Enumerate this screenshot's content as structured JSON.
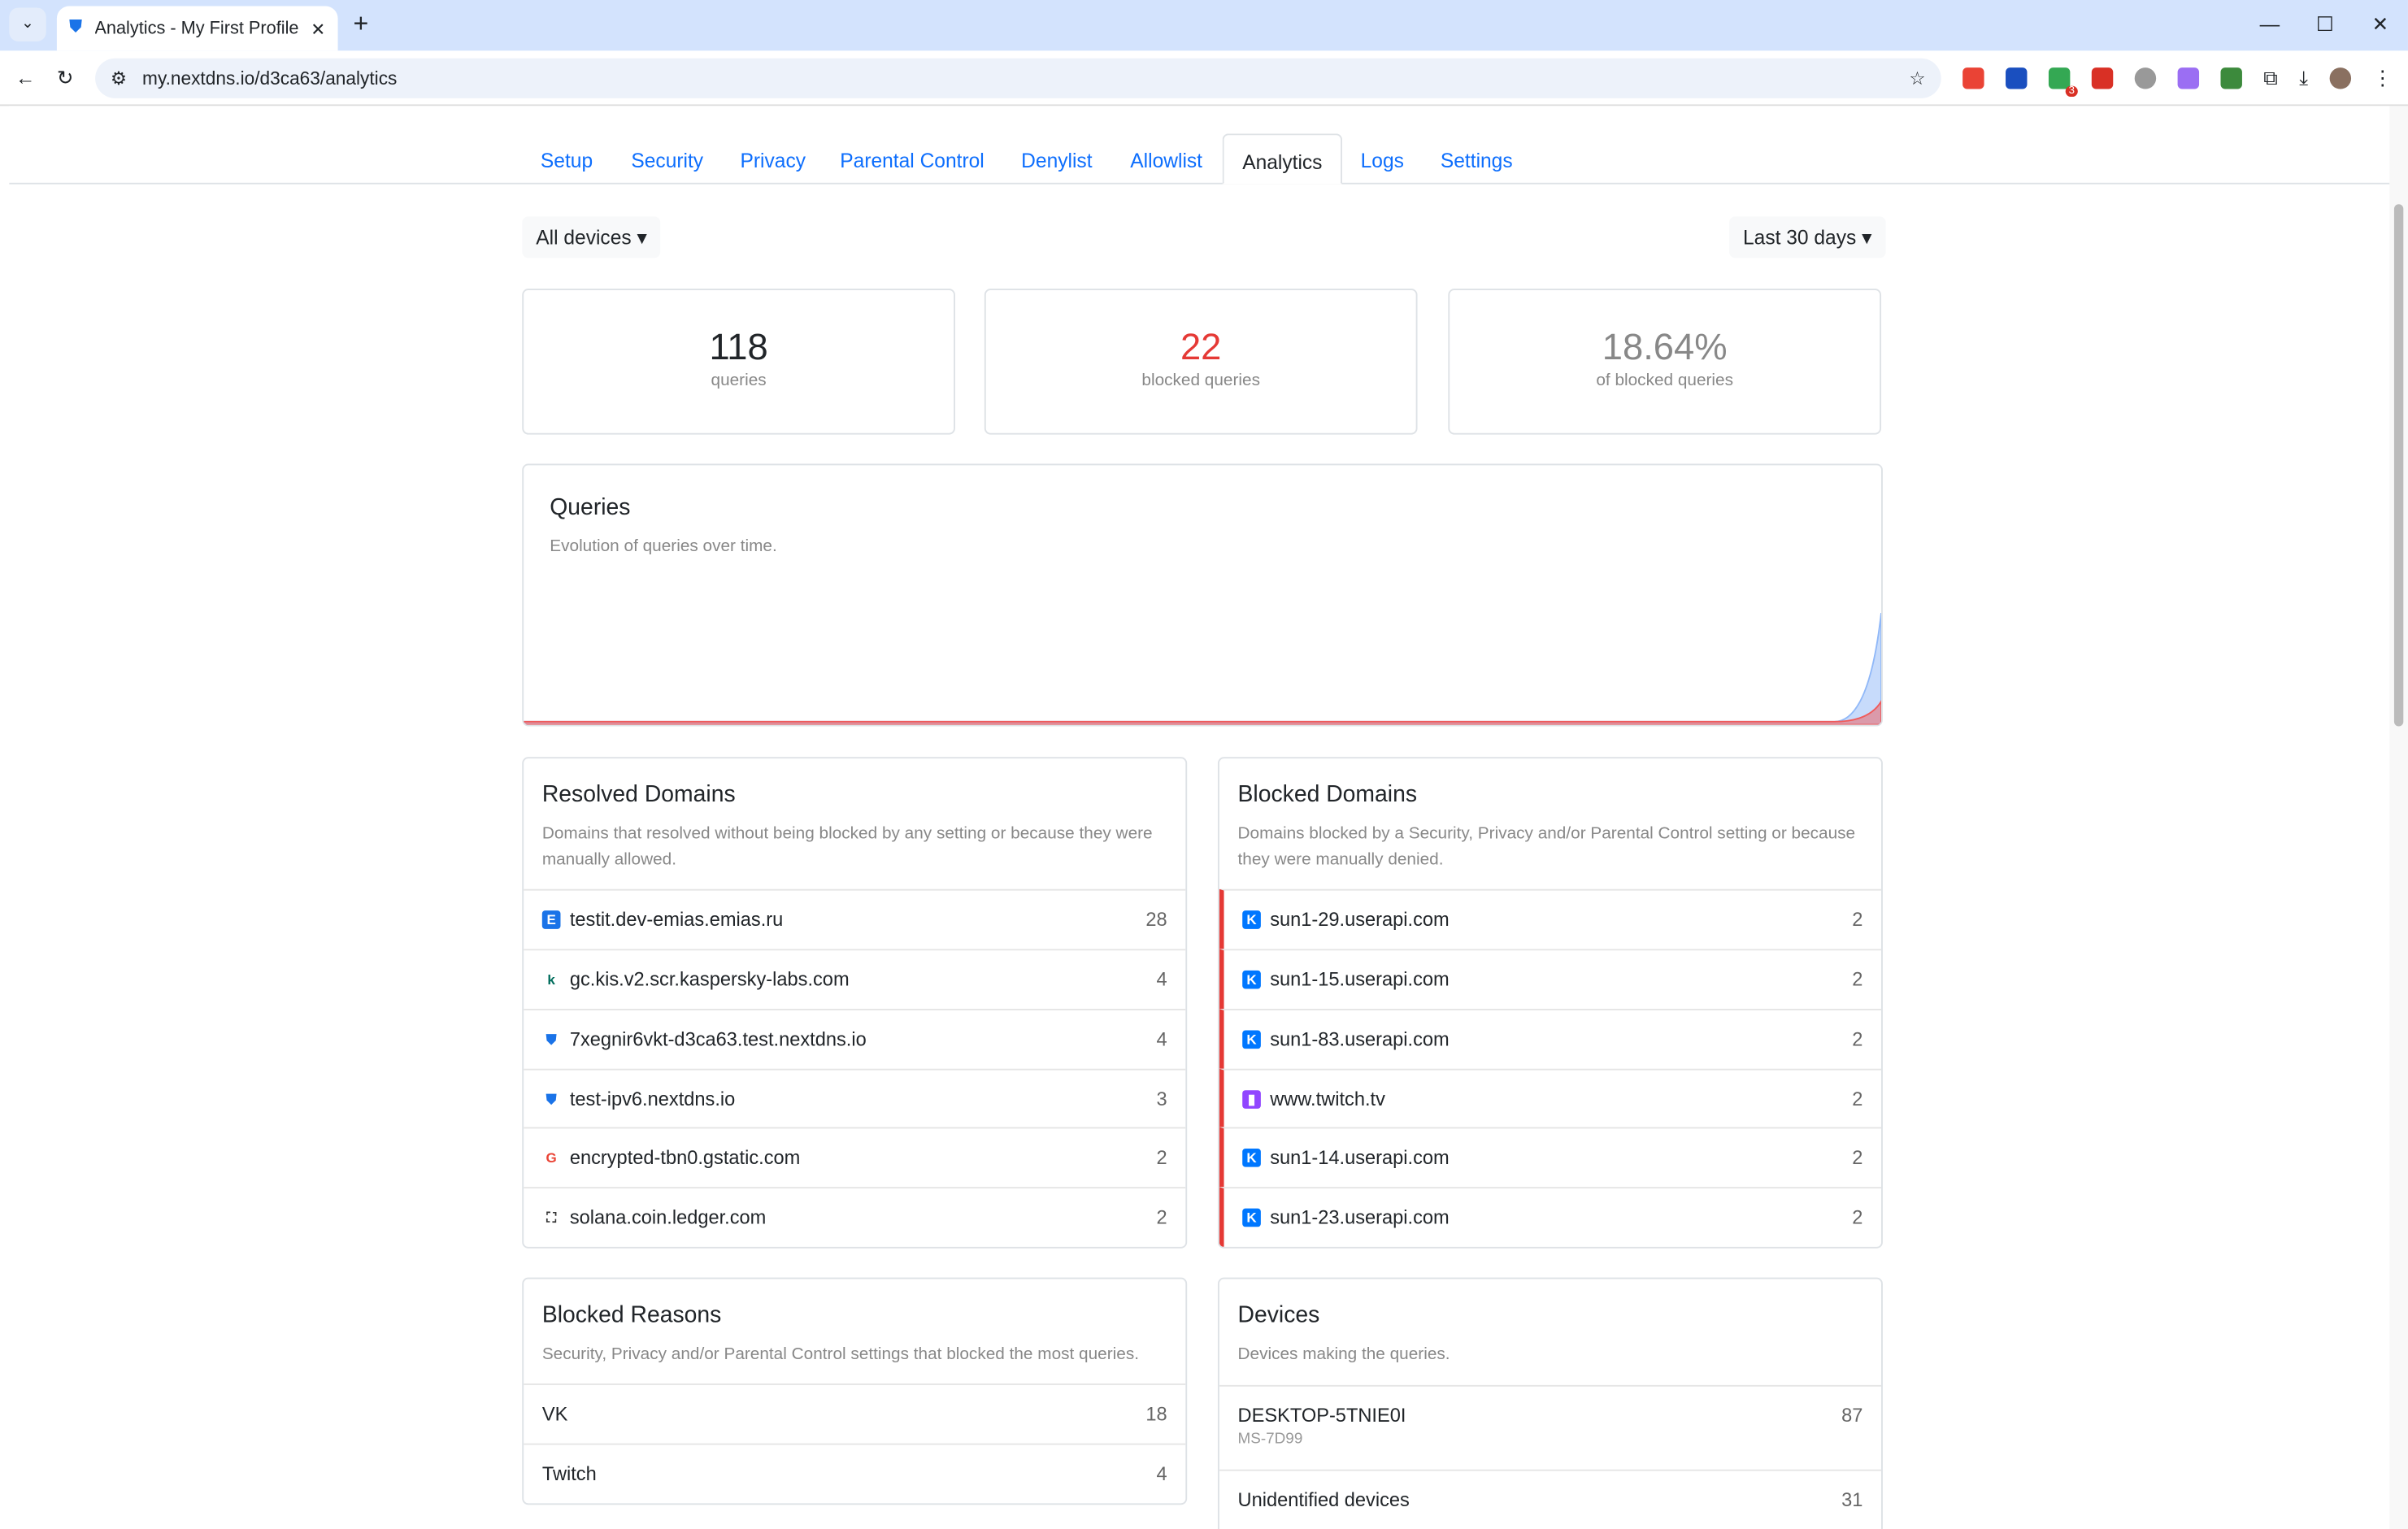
{
  "browser": {
    "tab_title": "Analytics - My First Profile - NextDNS",
    "url": "my.nextdns.io/d3ca63/analytics",
    "ext_badge": "3"
  },
  "nav": {
    "tabs": [
      "Setup",
      "Security",
      "Privacy",
      "Parental Control",
      "Denylist",
      "Allowlist",
      "Analytics",
      "Logs",
      "Settings"
    ],
    "active": "Analytics"
  },
  "filters": {
    "devices": "All devices",
    "range": "Last 30 days"
  },
  "stats": [
    {
      "value": "118",
      "label": "queries"
    },
    {
      "value": "22",
      "label": "blocked queries"
    },
    {
      "value": "18.64%",
      "label": "of blocked queries"
    }
  ],
  "colors": {
    "link": "#0d6efd",
    "blocked": "#e53935",
    "chart_queries": "#90b8f8",
    "chart_blocked": "#f05a5a"
  },
  "chart_data": {
    "type": "area",
    "title": "Queries",
    "subtitle": "Evolution of queries over time.",
    "grid": false,
    "series": [
      {
        "values": [
          0,
          0,
          0,
          0,
          0,
          0,
          0,
          0,
          0,
          0,
          0,
          0,
          0,
          0,
          0,
          0,
          0,
          0,
          0,
          0,
          0,
          0,
          0,
          0,
          0,
          0,
          0,
          0,
          0,
          118
        ]
      },
      {
        "values": [
          0,
          0,
          0,
          0,
          0,
          0,
          0,
          0,
          0,
          0,
          0,
          0,
          0,
          0,
          0,
          0,
          0,
          0,
          0,
          0,
          0,
          0,
          0,
          0,
          0,
          0,
          0,
          0,
          0,
          22
        ]
      }
    ]
  },
  "resolved": {
    "title": "Resolved Domains",
    "desc": "Domains that resolved without being blocked by any setting or because they were manually allowed.",
    "items": [
      {
        "domain": "testit.dev-emias.emias.ru",
        "count": "28",
        "icon": "emias-icon"
      },
      {
        "domain": "gc.kis.v2.scr.kaspersky-labs.com",
        "count": "4",
        "icon": "kaspersky-icon"
      },
      {
        "domain": "7xegnir6vkt-d3ca63.test.nextdns.io",
        "count": "4",
        "icon": "nextdns-shield-icon"
      },
      {
        "domain": "test-ipv6.nextdns.io",
        "count": "3",
        "icon": "nextdns-shield-icon"
      },
      {
        "domain": "encrypted-tbn0.gstatic.com",
        "count": "2",
        "icon": "google-icon"
      },
      {
        "domain": "solana.coin.ledger.com",
        "count": "2",
        "icon": "ledger-icon"
      }
    ]
  },
  "blocked": {
    "title": "Blocked Domains",
    "desc": "Domains blocked by a Security, Privacy and/or Parental Control setting or because they were manually denied.",
    "items": [
      {
        "domain": "sun1-29.userapi.com",
        "count": "2",
        "icon": "vk-icon"
      },
      {
        "domain": "sun1-15.userapi.com",
        "count": "2",
        "icon": "vk-icon"
      },
      {
        "domain": "sun1-83.userapi.com",
        "count": "2",
        "icon": "vk-icon"
      },
      {
        "domain": "www.twitch.tv",
        "count": "2",
        "icon": "twitch-icon"
      },
      {
        "domain": "sun1-14.userapi.com",
        "count": "2",
        "icon": "vk-icon"
      },
      {
        "domain": "sun1-23.userapi.com",
        "count": "2",
        "icon": "vk-icon"
      }
    ]
  },
  "reasons": {
    "title": "Blocked Reasons",
    "desc": "Security, Privacy and/or Parental Control settings that blocked the most queries.",
    "items": [
      {
        "name": "VK",
        "count": "18"
      },
      {
        "name": "Twitch",
        "count": "4"
      }
    ]
  },
  "devices": {
    "title": "Devices",
    "desc": "Devices making the queries.",
    "items": [
      {
        "name": "DESKTOP-5TNIE0I",
        "model": "MS-7D99",
        "count": "87"
      },
      {
        "name": "Unidentified devices",
        "count": "31"
      }
    ]
  }
}
